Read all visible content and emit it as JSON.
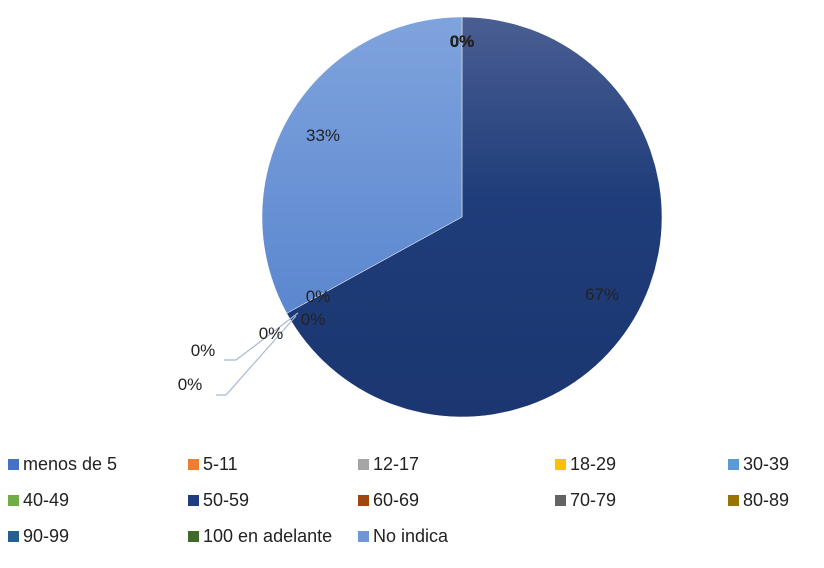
{
  "chart_data": {
    "type": "pie",
    "title": "",
    "slices": [
      {
        "name": "menos de 5",
        "value": 0,
        "label": "0%",
        "color": "#4472C4"
      },
      {
        "name": "5-11",
        "value": 0,
        "label": "0%",
        "color": "#ED7D31"
      },
      {
        "name": "12-17",
        "value": 0,
        "label": "0%",
        "color": "#A5A5A5"
      },
      {
        "name": "18-29",
        "value": 0,
        "label": "0%",
        "color": "#FFC000"
      },
      {
        "name": "30-39",
        "value": 0,
        "label": "0%",
        "color": "#5B9BD5"
      },
      {
        "name": "40-49",
        "value": 0,
        "label": "0%",
        "color": "#70AD47"
      },
      {
        "name": "50-59",
        "value": 67,
        "label": "67%",
        "color": "#1F3D7A"
      },
      {
        "name": "60-69",
        "value": 0,
        "label": "0%",
        "color": "#9E480E"
      },
      {
        "name": "70-79",
        "value": 0,
        "label": "0%",
        "color": "#636363"
      },
      {
        "name": "80-89",
        "value": 0,
        "label": "0%",
        "color": "#997300"
      },
      {
        "name": "90-99",
        "value": 0,
        "label": "0%",
        "color": "#255E91"
      },
      {
        "name": "100 en adelante",
        "value": 0,
        "label": "0%",
        "color": "#43682B"
      },
      {
        "name": "No indica",
        "value": 33,
        "label": "33%",
        "color": "#6F97D8"
      }
    ],
    "legend_position": "bottom"
  }
}
